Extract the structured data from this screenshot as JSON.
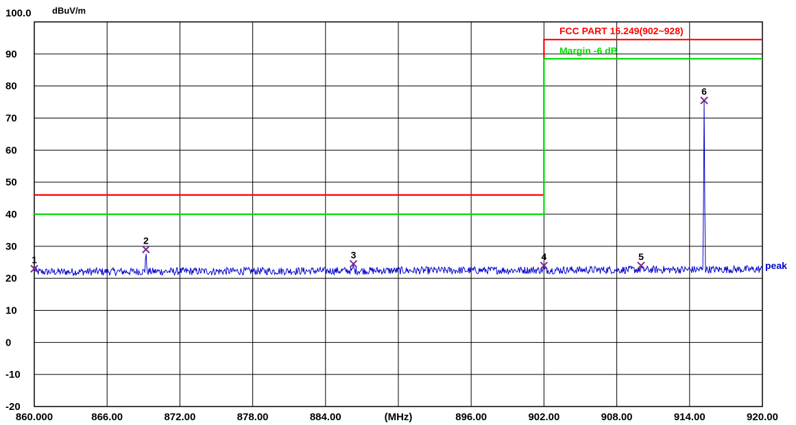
{
  "chart_data": {
    "type": "line",
    "title": "",
    "ylabel": "dBuV/m",
    "xlabel": "(MHz)",
    "xlim": [
      860,
      920
    ],
    "ylim": [
      -20,
      100
    ],
    "y_top_label": "100.0",
    "y_ticks": [
      90,
      80,
      70,
      60,
      50,
      40,
      30,
      20,
      10,
      0,
      -10,
      -20
    ],
    "y_tick_labels": [
      "90",
      "80",
      "70",
      "60",
      "50",
      "40",
      "30",
      "20",
      "10",
      "0",
      "-10",
      "-20"
    ],
    "x_ticks": [
      860,
      866,
      872,
      878,
      884,
      890,
      896,
      902,
      908,
      914,
      920
    ],
    "x_tick_labels": [
      "860.000",
      "866.00",
      "872.00",
      "878.00",
      "884.00",
      "(MHz)",
      "896.00",
      "902.00",
      "908.00",
      "914.00",
      "920.00"
    ],
    "grid": true,
    "legend_position": "top-right",
    "series": [
      {
        "name": "FCC PART 15.249(902~928)",
        "color": "#ff0000",
        "points": [
          [
            860,
            46
          ],
          [
            902,
            46
          ],
          [
            902,
            94.5
          ],
          [
            920,
            94.5
          ]
        ]
      },
      {
        "name": "Margin -6 dB",
        "color": "#00dd00",
        "points": [
          [
            860,
            40
          ],
          [
            902,
            40
          ],
          [
            902,
            88.5
          ],
          [
            920,
            88.5
          ]
        ]
      },
      {
        "name": "peak",
        "color": "#0000cc",
        "baseline": 22,
        "noise": 1.2,
        "peaks": [
          [
            860.0,
            23.0
          ],
          [
            869.2,
            29.0
          ],
          [
            886.3,
            24.5
          ],
          [
            902.0,
            24.0
          ],
          [
            910.0,
            24.0
          ],
          [
            915.2,
            75.5
          ]
        ]
      }
    ],
    "markers": [
      {
        "label": "1",
        "x": 860.0,
        "y": 23.0
      },
      {
        "label": "2",
        "x": 869.2,
        "y": 29.0
      },
      {
        "label": "3",
        "x": 886.3,
        "y": 24.5
      },
      {
        "label": "4",
        "x": 902.0,
        "y": 24.0
      },
      {
        "label": "5",
        "x": 910.0,
        "y": 24.0
      },
      {
        "label": "6",
        "x": 915.2,
        "y": 75.5
      }
    ]
  },
  "colors": {
    "grid": "#000000",
    "limit": "#ff0000",
    "margin": "#00dd00",
    "trace": "#0000cc",
    "marker": "#7a2a8a"
  },
  "legend": {
    "limit_label": "FCC PART 15.249(902~928)",
    "margin_label": "Margin -6 dB"
  },
  "trace_label": "peak"
}
